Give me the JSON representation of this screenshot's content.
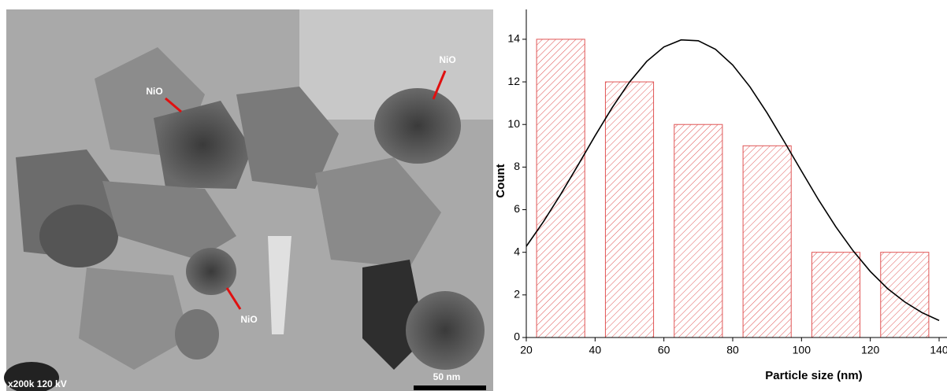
{
  "micrograph": {
    "labels": [
      "NiO",
      "NiO",
      "NiO"
    ],
    "info": "x200k 120 kV",
    "scale_bar": "50 nm"
  },
  "chart_data": {
    "type": "bar",
    "x": [
      30,
      50,
      70,
      90,
      110,
      130
    ],
    "values": [
      14,
      12,
      10,
      9,
      4,
      4
    ],
    "color": "#e05555",
    "xlabel": "Particle size (nm)",
    "ylabel": "Count",
    "xlim": [
      20,
      140
    ],
    "ylim": [
      0,
      15.4
    ],
    "xticks": [
      20,
      40,
      60,
      80,
      100,
      120,
      140
    ],
    "yticks": [
      0,
      2,
      4,
      6,
      8,
      10,
      12,
      14
    ],
    "curve": {
      "color": "#000000",
      "x": [
        20,
        25,
        30,
        35,
        40,
        45,
        50,
        55,
        60,
        65,
        70,
        75,
        80,
        85,
        90,
        95,
        100,
        105,
        110,
        115,
        120,
        125,
        130,
        135,
        140
      ],
      "values": [
        4.28,
        5.44,
        6.72,
        8.08,
        9.47,
        10.8,
        11.99,
        12.96,
        13.64,
        13.97,
        13.93,
        13.53,
        12.79,
        11.77,
        10.54,
        9.19,
        7.81,
        6.45,
        5.19,
        4.07,
        3.1,
        2.3,
        1.67,
        1.17,
        0.8
      ]
    }
  }
}
